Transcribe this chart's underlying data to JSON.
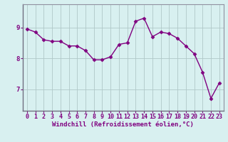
{
  "x": [
    0,
    1,
    2,
    3,
    4,
    5,
    6,
    7,
    8,
    9,
    10,
    11,
    12,
    13,
    14,
    15,
    16,
    17,
    18,
    19,
    20,
    21,
    22,
    23
  ],
  "y": [
    8.95,
    8.85,
    8.6,
    8.55,
    8.55,
    8.4,
    8.4,
    8.25,
    7.95,
    7.95,
    8.05,
    8.45,
    8.5,
    9.2,
    9.3,
    8.7,
    8.85,
    8.8,
    8.65,
    8.4,
    8.15,
    7.55,
    6.7,
    7.2
  ],
  "line_color": "#800080",
  "marker": "D",
  "markersize": 2.5,
  "linewidth": 1.0,
  "bg_color": "#d8f0f0",
  "grid_color": "#b0c8c8",
  "xlabel": "Windchill (Refroidissement éolien,°C)",
  "xlabel_color": "#800080",
  "xlabel_fontsize": 6.5,
  "tick_label_color": "#800080",
  "tick_fontsize": 6.0,
  "yticks": [
    7,
    8,
    9
  ],
  "ylim": [
    6.3,
    9.75
  ],
  "xlim": [
    -0.5,
    23.5
  ],
  "xticks": [
    0,
    1,
    2,
    3,
    4,
    5,
    6,
    7,
    8,
    9,
    10,
    11,
    12,
    13,
    14,
    15,
    16,
    17,
    18,
    19,
    20,
    21,
    22,
    23
  ],
  "spine_color": "#9090a0",
  "axis_bg": "#d8f0f0"
}
